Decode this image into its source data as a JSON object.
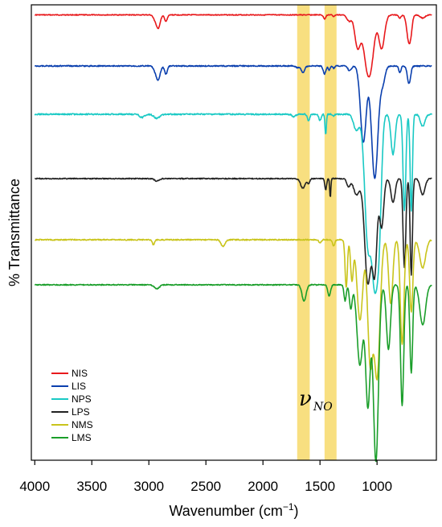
{
  "chart_data": {
    "type": "line",
    "title": "",
    "xlabel": "Wavenumber (cm",
    "xlabel_sup": "−1",
    "xlabel_close": ")",
    "ylabel": "% Transmittance",
    "xlim": [
      4030,
      480
    ],
    "x_reversed": true,
    "y_ticks_shown": false,
    "grid": false,
    "legend_position": "bottom-left",
    "x_ticks": [
      4000,
      3500,
      3000,
      2500,
      2000,
      1500,
      1000
    ],
    "x_tick_labels": [
      "4000",
      "3500",
      "3000",
      "2500",
      "2000",
      "1500",
      "1000"
    ],
    "highlight_bands": [
      {
        "from": 1700,
        "to": 1590,
        "color": "#f7d96a"
      },
      {
        "from": 1460,
        "to": 1355,
        "color": "#f7d96a"
      }
    ],
    "annotation": {
      "symbol": "ν",
      "subscript": "NO",
      "x": 1560
    },
    "series": [
      {
        "name": "NIS",
        "color": "#e8191c",
        "baseline": 0.5,
        "noise": 0.5,
        "peaks": [
          [
            2955,
            -3,
            12
          ],
          [
            2920,
            -17,
            18
          ],
          [
            2850,
            -8,
            12
          ],
          [
            1460,
            -5,
            10
          ],
          [
            1380,
            -2,
            8
          ],
          [
            1260,
            -3,
            15
          ],
          [
            1240,
            -6,
            15
          ],
          [
            1170,
            -40,
            25
          ],
          [
            1080,
            -70,
            35
          ],
          [
            1040,
            -20,
            25
          ],
          [
            960,
            -42,
            25
          ],
          [
            800,
            -4,
            10
          ],
          [
            720,
            -35,
            18
          ],
          [
            700,
            -6,
            10
          ],
          [
            600,
            -4,
            20
          ]
        ],
        "fill_to_end": 1
      },
      {
        "name": "LIS",
        "color": "#0a3fae",
        "baseline": 64,
        "noise": 0.7,
        "peaks": [
          [
            2955,
            -3,
            12
          ],
          [
            2920,
            -18,
            18
          ],
          [
            2850,
            -10,
            12
          ],
          [
            1700,
            -2,
            15
          ],
          [
            1650,
            -8,
            15
          ],
          [
            1460,
            -10,
            12
          ],
          [
            1420,
            -5,
            8
          ],
          [
            1380,
            -3,
            8
          ],
          [
            1240,
            -6,
            15
          ],
          [
            1120,
            -95,
            25
          ],
          [
            1020,
            -140,
            28
          ],
          [
            950,
            -20,
            20
          ],
          [
            800,
            -8,
            10
          ],
          [
            720,
            -22,
            14
          ]
        ],
        "fill_to_end": 1
      },
      {
        "name": "NPS",
        "color": "#19c9c4",
        "baseline": 124,
        "noise": 0.8,
        "peaks": [
          [
            3060,
            -4,
            20
          ],
          [
            2930,
            -5,
            25
          ],
          [
            1730,
            -3,
            15
          ],
          [
            1600,
            -8,
            10
          ],
          [
            1500,
            -8,
            10
          ],
          [
            1450,
            -26,
            6
          ],
          [
            1380,
            -2,
            8
          ],
          [
            1180,
            -20,
            25
          ],
          [
            1080,
            -160,
            28
          ],
          [
            1020,
            -190,
            25
          ],
          [
            980,
            -120,
            20
          ],
          [
            860,
            -50,
            18
          ],
          [
            760,
            -120,
            12
          ],
          [
            700,
            -120,
            10
          ],
          [
            600,
            -15,
            20
          ]
        ],
        "fill_to_end": 1
      },
      {
        "name": "LPS",
        "color": "#222222",
        "baseline": 204,
        "noise": 0.6,
        "peaks": [
          [
            2930,
            -3,
            20
          ],
          [
            1650,
            -12,
            20
          ],
          [
            1600,
            -6,
            10
          ],
          [
            1450,
            -14,
            8
          ],
          [
            1410,
            -24,
            5
          ],
          [
            1250,
            -10,
            15
          ],
          [
            1180,
            -20,
            25
          ],
          [
            1080,
            -130,
            28
          ],
          [
            1020,
            -110,
            20
          ],
          [
            960,
            -60,
            18
          ],
          [
            860,
            -30,
            18
          ],
          [
            760,
            -110,
            12
          ],
          [
            700,
            -120,
            10
          ],
          [
            600,
            -20,
            20
          ]
        ],
        "fill_to_end": 1
      },
      {
        "name": "NMS",
        "color": "#c9c41b",
        "baseline": 280,
        "noise": 0.7,
        "peaks": [
          [
            2960,
            -6,
            10
          ],
          [
            2350,
            -8,
            18
          ],
          [
            1500,
            -4,
            10
          ],
          [
            1380,
            -8,
            10
          ],
          [
            1270,
            -60,
            10
          ],
          [
            1220,
            -50,
            12
          ],
          [
            1150,
            -100,
            25
          ],
          [
            1060,
            -150,
            22
          ],
          [
            1000,
            -170,
            25
          ],
          [
            880,
            -80,
            18
          ],
          [
            780,
            -130,
            16
          ],
          [
            700,
            -90,
            14
          ],
          [
            600,
            -35,
            25
          ]
        ],
        "fill_to_end": 1
      },
      {
        "name": "LMS",
        "color": "#1a9e2a",
        "baseline": 336,
        "noise": 0.6,
        "peaks": [
          [
            2930,
            -5,
            22
          ],
          [
            1640,
            -20,
            18
          ],
          [
            1420,
            -14,
            12
          ],
          [
            1280,
            -20,
            10
          ],
          [
            1230,
            -30,
            12
          ],
          [
            1150,
            -100,
            25
          ],
          [
            1080,
            -150,
            20
          ],
          [
            1010,
            -220,
            22
          ],
          [
            900,
            -80,
            18
          ],
          [
            780,
            -150,
            14
          ],
          [
            700,
            -110,
            12
          ],
          [
            600,
            -50,
            25
          ]
        ],
        "fill_to_end": 1
      }
    ]
  }
}
